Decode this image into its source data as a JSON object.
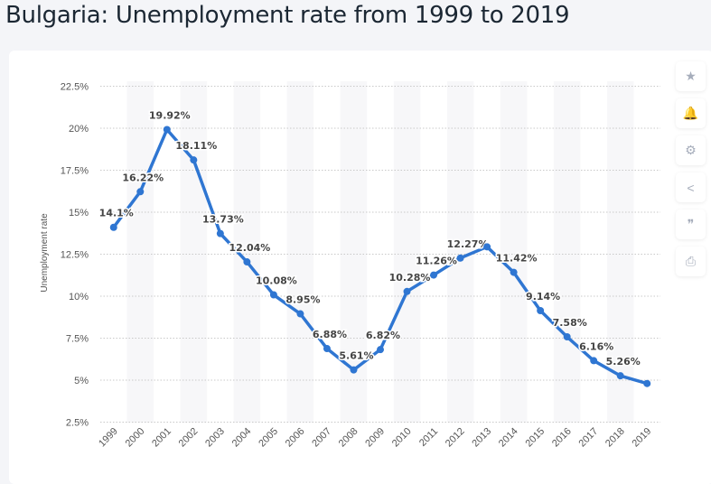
{
  "title": "Bulgaria: Unemployment rate from 1999 to 2019",
  "sidebar": [
    {
      "icon": "star-icon",
      "glyph": "★"
    },
    {
      "icon": "bell-icon",
      "glyph": "🔔"
    },
    {
      "icon": "gear-icon",
      "glyph": "⚙"
    },
    {
      "icon": "share-icon",
      "glyph": "<"
    },
    {
      "icon": "quote-icon",
      "glyph": "❞"
    },
    {
      "icon": "print-icon",
      "glyph": "⎙"
    }
  ],
  "chart_data": {
    "type": "line",
    "title": "Bulgaria: Unemployment rate from 1999 to 2019",
    "xlabel": "",
    "ylabel": "Unemployment rate",
    "ylim": [
      2.5,
      22.5
    ],
    "yticks": [
      "2.5%",
      "5%",
      "7.5%",
      "10%",
      "12.5%",
      "15%",
      "17.5%",
      "20%",
      "22.5%"
    ],
    "ytick_values": [
      2.5,
      5,
      7.5,
      10,
      12.5,
      15,
      17.5,
      20,
      22.5
    ],
    "categories": [
      "1999",
      "2000",
      "2001",
      "2002",
      "2003",
      "2004",
      "2005",
      "2006",
      "2007",
      "2008",
      "2009",
      "2010",
      "2011",
      "2012",
      "2013",
      "2014",
      "2015",
      "2016",
      "2017",
      "2018",
      "2019"
    ],
    "values": [
      14.1,
      16.22,
      19.92,
      18.11,
      13.73,
      12.04,
      10.08,
      8.95,
      6.88,
      5.61,
      6.82,
      10.28,
      11.26,
      12.27,
      12.94,
      11.42,
      9.14,
      7.58,
      6.16,
      5.26,
      4.8
    ],
    "labels": [
      "14.1%",
      "16.22%",
      "19.92%",
      "18.11%",
      "13.73%",
      "12.04%",
      "10.08%",
      "8.95%",
      "6.88%",
      "5.61%",
      "6.82%",
      "10.28%",
      "11.26%",
      "12.27%",
      "",
      "11.42%",
      "9.14%",
      "7.58%",
      "6.16%",
      "5.26%",
      ""
    ],
    "color": "#2f76d2",
    "grid": true
  }
}
